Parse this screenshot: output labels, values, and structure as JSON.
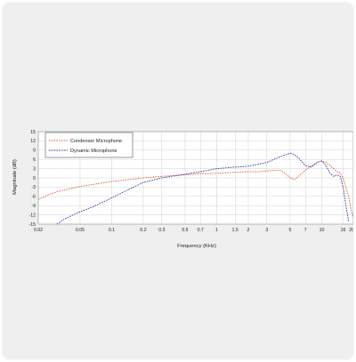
{
  "colors": {
    "card_bg": "#efefef",
    "grid": "#c8c8c8",
    "condenser": "#e05a3a",
    "dynamic": "#2b2fa0"
  },
  "chart_data": {
    "type": "line",
    "title": "",
    "xlabel": "Frequency (KHz)",
    "ylabel": "Magnitude (dB)",
    "xscale": "log",
    "xlim": [
      0.02,
      20
    ],
    "ylim": [
      -15,
      15
    ],
    "x_ticks": [
      0.02,
      0.05,
      0.1,
      0.2,
      0.3,
      0.5,
      0.7,
      1,
      1.5,
      2,
      3,
      5,
      7,
      10,
      16,
      20
    ],
    "x_tick_labels": [
      "0.02",
      "0.05",
      "0.1",
      "0.2",
      "0.3",
      "0.5",
      "0.7",
      "1",
      "1.5",
      "2",
      "3",
      "5",
      "7",
      "10",
      "16",
      "20"
    ],
    "y_ticks": [
      15,
      12,
      9,
      6,
      3,
      0,
      -3,
      -6,
      -9,
      -12,
      -15
    ],
    "y_tick_labels": [
      "15",
      "12",
      "9",
      "6",
      "3",
      "0",
      "-3",
      "-6",
      "-9",
      "-12",
      "-15"
    ],
    "grid": true,
    "legend_position": "top-left",
    "series": [
      {
        "name": "Condenser Microphone",
        "color": "#e05a3a",
        "x": [
          0.02,
          0.025,
          0.03,
          0.04,
          0.05,
          0.07,
          0.1,
          0.15,
          0.2,
          0.3,
          0.5,
          0.7,
          1,
          1.5,
          2,
          2.5,
          3,
          3.5,
          4,
          4.5,
          5,
          5.5,
          6,
          7,
          8,
          9,
          10,
          11,
          12,
          13,
          14,
          15,
          16,
          17,
          18,
          19,
          20
        ],
        "y": [
          -7,
          -5.5,
          -4.5,
          -3.5,
          -2.8,
          -2,
          -1.2,
          -0.5,
          0,
          0.5,
          1,
          1.3,
          1.5,
          1.8,
          2,
          2,
          2.2,
          2.5,
          2.5,
          1.5,
          0,
          -0.5,
          0.5,
          2.5,
          4,
          5,
          5.5,
          5,
          4,
          3,
          2,
          1.5,
          0,
          -3,
          -6,
          -10,
          -13
        ]
      },
      {
        "name": "Dynamic Microphone",
        "color": "#2b2fa0",
        "x": [
          0.03,
          0.035,
          0.04,
          0.05,
          0.07,
          0.1,
          0.15,
          0.2,
          0.3,
          0.5,
          0.7,
          1,
          1.5,
          2,
          3,
          3.5,
          4,
          4.5,
          5,
          5.5,
          6,
          7,
          8,
          9,
          10,
          11,
          12,
          13,
          14,
          15,
          16,
          17,
          18
        ],
        "y": [
          -15,
          -13.5,
          -12.5,
          -11,
          -9,
          -6.5,
          -3.5,
          -1.5,
          0,
          1.2,
          2,
          3,
          3.5,
          3.8,
          5,
          6,
          6.8,
          7.5,
          8,
          7.5,
          6.5,
          4,
          3.5,
          5,
          5.5,
          4,
          1.5,
          0.5,
          1,
          0.5,
          -3,
          -9,
          -14
        ]
      }
    ]
  }
}
